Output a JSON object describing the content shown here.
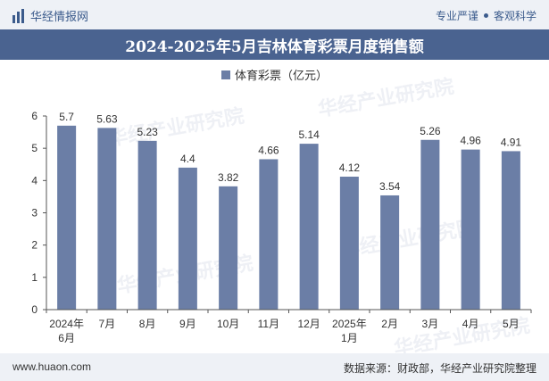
{
  "header": {
    "brand": "华经情报网",
    "tag1": "专业严谨",
    "tag2": "客观科学"
  },
  "footer": {
    "site": "www.huaon.com",
    "source": "数据来源：财政部，华经产业研究院整理"
  },
  "watermark": "华经产业研究院",
  "colors": {
    "bar": "#6b7ea6",
    "title_bg": "#4a6390"
  },
  "chart_data": {
    "type": "bar",
    "title": "2024-2025年5月吉林体育彩票月度销售额",
    "categories": [
      [
        "2024年",
        "6月"
      ],
      [
        "7月"
      ],
      [
        "8月"
      ],
      [
        "9月"
      ],
      [
        "10月"
      ],
      [
        "11月"
      ],
      [
        "12月"
      ],
      [
        "2025年",
        "1月"
      ],
      [
        "2月"
      ],
      [
        "3月"
      ],
      [
        "4月"
      ],
      [
        "5月"
      ]
    ],
    "series": [
      {
        "name": "体育彩票（亿元）",
        "values": [
          5.7,
          5.63,
          5.23,
          4.4,
          3.82,
          4.66,
          5.14,
          4.12,
          3.54,
          5.26,
          4.96,
          4.91
        ]
      }
    ],
    "value_labels": [
      "5.7",
      "5.63",
      "5.23",
      "4.4",
      "3.82",
      "4.66",
      "5.14",
      "4.12",
      "3.54",
      "5.26",
      "4.96",
      "4.91"
    ],
    "ylim": [
      0,
      6
    ],
    "yticks": [
      0,
      1,
      2,
      3,
      4,
      5,
      6
    ],
    "legend": "top-center",
    "grid": false
  }
}
